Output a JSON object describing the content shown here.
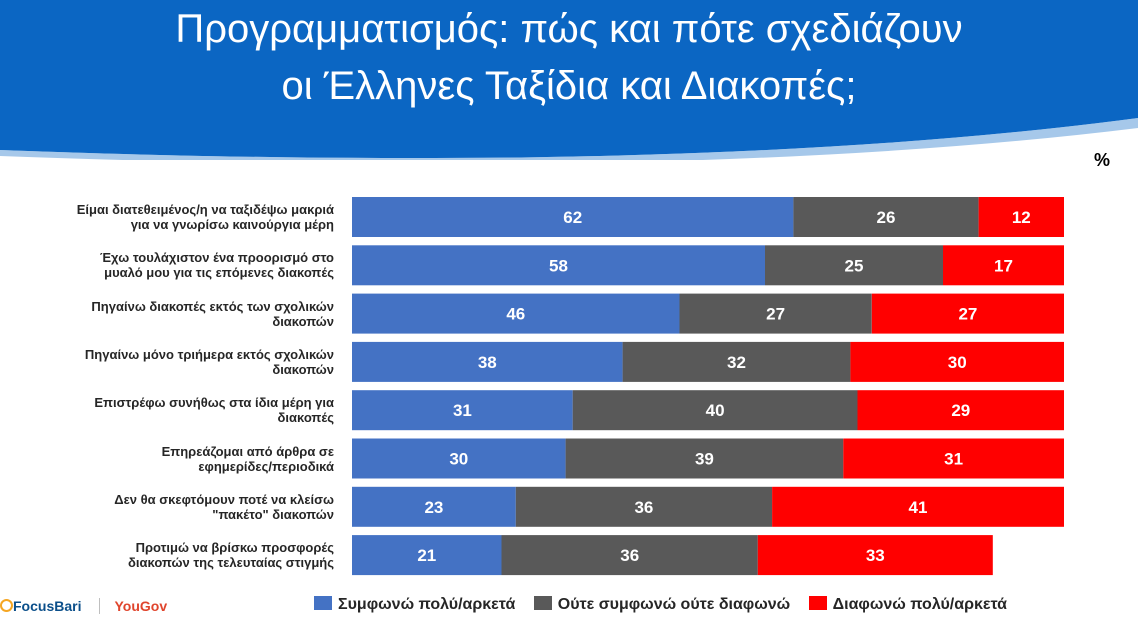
{
  "title_line1": "Προγραμματισμός: πώς και πότε σχεδιάζουν",
  "title_line2": "οι Έλληνες Ταξίδια και Διακοπές;",
  "unit": "%",
  "colors": {
    "banner": "#0b66c3",
    "agree": "#4472c4",
    "neutral": "#595959",
    "disagree": "#ff0000"
  },
  "logos": {
    "focus": "FocusBari",
    "yougov": "YouGov"
  },
  "chart_data": {
    "type": "bar",
    "orientation": "horizontal-stacked-100",
    "categories": [
      "Είμαι διατεθειμένος/η να ταξιδέψω μακριά για να γνωρίσω καινούργια μέρη",
      "Έχω τουλάχιστον ένα προορισμό στο μυαλό μου για τις επόμενες διακοπές",
      "Πηγαίνω διακοπές εκτός των σχολικών διακοπών",
      "Πηγαίνω μόνο τριήμερα εκτός σχολικών διακοπών",
      "Επιστρέφω συνήθως στα ίδια μέρη για διακοπές",
      "Επηρεάζομαι από άρθρα σε εφημερίδες/περιοδικά",
      "Δεν θα σκεφτόμουν ποτέ να κλείσω \"πακέτο\" διακοπών",
      "Προτιμώ να βρίσκω προσφορές διακοπών της τελευταίας στιγμής"
    ],
    "category_lines": [
      [
        "Είμαι διατεθειμένος/η να ταξιδέψω μακριά",
        "για να γνωρίσω καινούργια μέρη"
      ],
      [
        "Έχω τουλάχιστον ένα προορισμό στο",
        "μυαλό μου για τις επόμενες διακοπές"
      ],
      [
        "Πηγαίνω διακοπές εκτός των σχολικών",
        "διακοπών"
      ],
      [
        "Πηγαίνω μόνο τριήμερα εκτός σχολικών",
        "διακοπών"
      ],
      [
        "Επιστρέφω συνήθως στα ίδια μέρη για",
        "διακοπές"
      ],
      [
        "Επηρεάζομαι από άρθρα σε",
        "εφημερίδες/περιοδικά"
      ],
      [
        "Δεν θα σκεφτόμουν ποτέ να κλείσω",
        "\"πακέτο\" διακοπών"
      ],
      [
        "Προτιμώ να βρίσκω προσφορές",
        "διακοπών της τελευταίας στιγμής"
      ]
    ],
    "series": [
      {
        "name": "Συμφωνώ πολύ/αρκετά",
        "color": "#4472c4",
        "values": [
          62,
          58,
          46,
          38,
          31,
          30,
          23,
          21
        ]
      },
      {
        "name": "Ούτε συμφωνώ ούτε διαφωνώ",
        "color": "#595959",
        "values": [
          26,
          25,
          27,
          32,
          40,
          39,
          36,
          36
        ]
      },
      {
        "name": "Διαφωνώ πολύ/αρκετά",
        "color": "#ff0000",
        "values": [
          12,
          17,
          27,
          30,
          29,
          31,
          41,
          33
        ]
      }
    ],
    "xlim": [
      0,
      100
    ],
    "legend": "bottom"
  }
}
